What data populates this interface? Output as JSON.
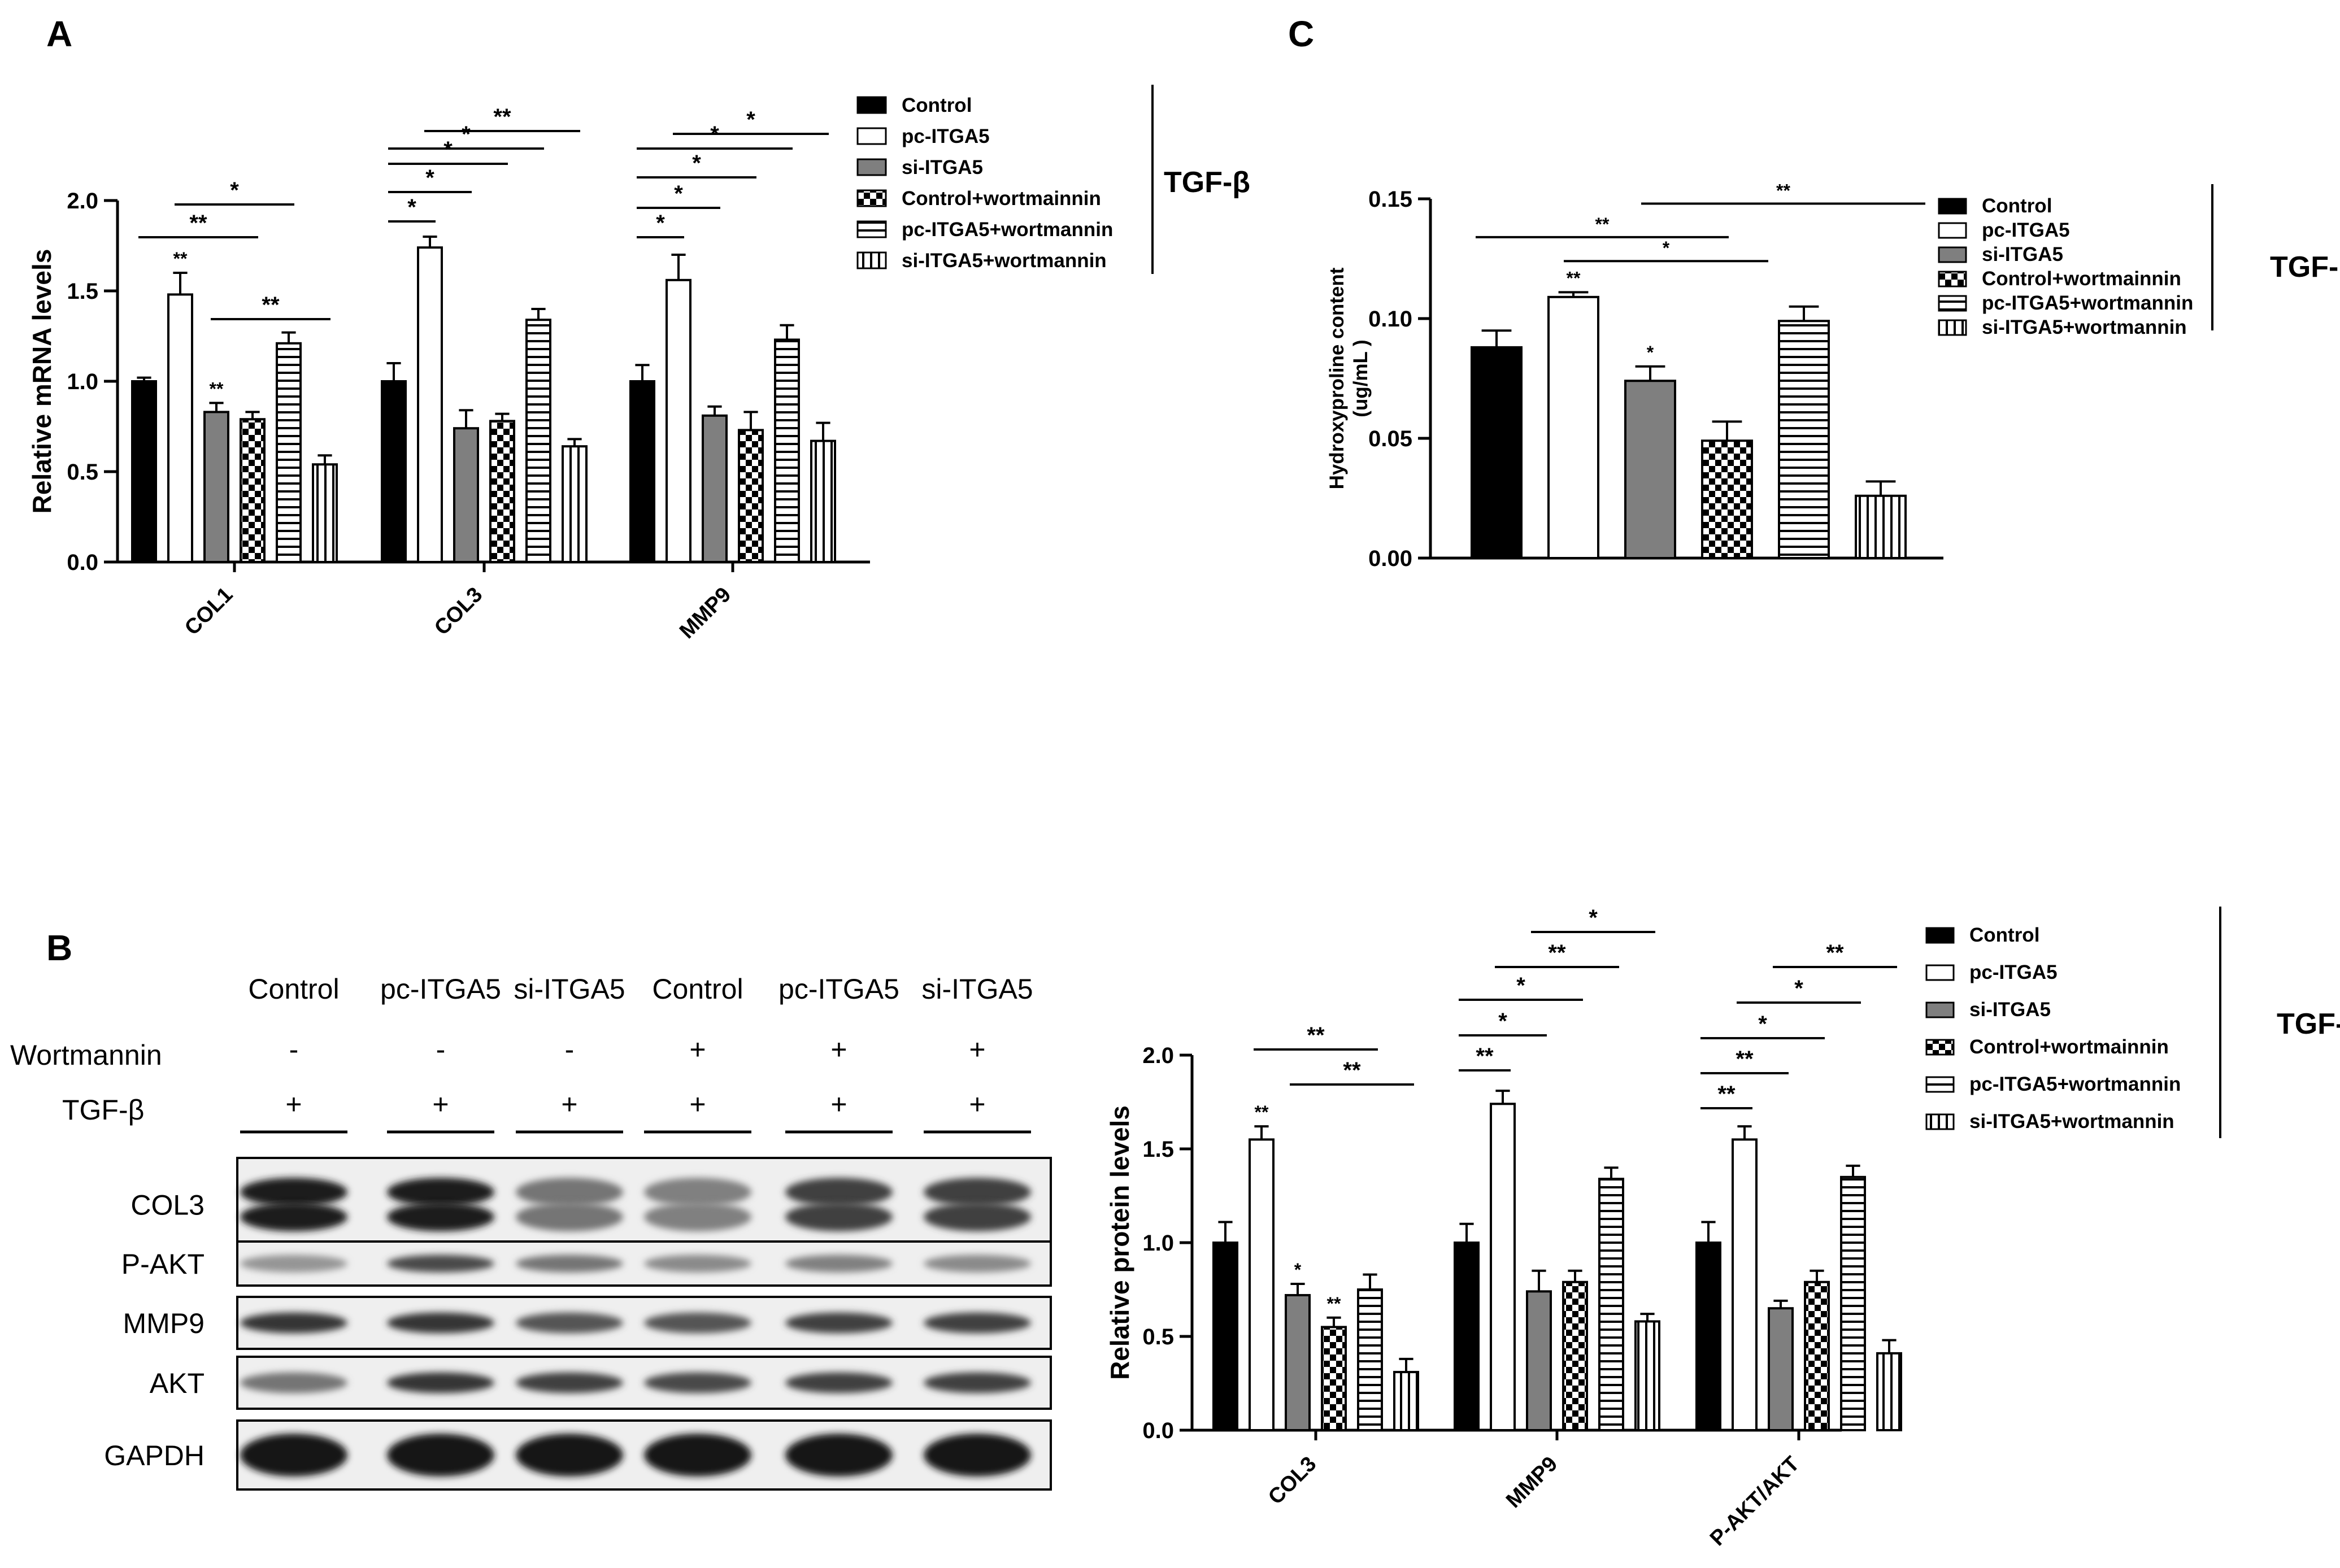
{
  "colors": {
    "control": "#000000",
    "pc_itga5": "#ffffff",
    "si_itga5": "#7f7f7f",
    "line": "#000000"
  },
  "pattern_names": [
    "solid-black",
    "white",
    "solid-gray",
    "checker",
    "horizontal-stripes",
    "vertical-stripes"
  ],
  "treatment_label": "TGF-β",
  "chart_data": [
    {
      "panel": "A",
      "type": "bar",
      "ylabel": "Relative mRNA levels",
      "ylim": [
        0,
        2.0
      ],
      "yticks": [
        "0.0",
        "0.5",
        "1.0",
        "1.5",
        "2.0"
      ],
      "categories": [
        "COL1",
        "COL3",
        "MMP9"
      ],
      "legend": [
        "Control",
        "pc-ITGA5",
        "si-ITGA5",
        "Control+wortmainnin",
        "pc-ITGA5+wortmannin",
        "si-ITGA5+wortmannin"
      ],
      "series": [
        {
          "name": "Control",
          "values": [
            1.0,
            1.0,
            1.0
          ],
          "errors": [
            0.02,
            0.1,
            0.09
          ]
        },
        {
          "name": "pc-ITGA5",
          "values": [
            1.48,
            1.74,
            1.56
          ],
          "errors": [
            0.12,
            0.06,
            0.14
          ]
        },
        {
          "name": "si-ITGA5",
          "values": [
            0.83,
            0.74,
            0.81
          ],
          "errors": [
            0.05,
            0.1,
            0.05
          ]
        },
        {
          "name": "Control+wortmainnin",
          "values": [
            0.79,
            0.78,
            0.73
          ],
          "errors": [
            0.04,
            0.04,
            0.1
          ]
        },
        {
          "name": "pc-ITGA5+wortmannin",
          "values": [
            1.21,
            1.34,
            1.23
          ],
          "errors": [
            0.06,
            0.06,
            0.08
          ]
        },
        {
          "name": "si-ITGA5+wortmannin",
          "values": [
            0.54,
            0.64,
            0.67
          ],
          "errors": [
            0.05,
            0.04,
            0.1
          ]
        }
      ],
      "bar_labels": [
        {
          "category": 0,
          "series": 1,
          "text": "**"
        },
        {
          "category": 0,
          "series": 2,
          "text": "**"
        }
      ],
      "brackets": [
        {
          "category": 0,
          "from": 0,
          "to": 1,
          "level": 0,
          "text": ""
        },
        {
          "category": 0,
          "from": 0,
          "to": 3,
          "level": 1,
          "text": "**"
        },
        {
          "category": 0,
          "from": 1,
          "to": 4,
          "level": 2,
          "text": "*"
        },
        {
          "category": 0,
          "from": 2,
          "to": 5,
          "level": 3,
          "text": "**"
        },
        {
          "category": 1,
          "from": 0,
          "to": 1,
          "level": 0,
          "text": "*"
        },
        {
          "category": 1,
          "from": 0,
          "to": 2,
          "level": 1,
          "text": "*"
        },
        {
          "category": 1,
          "from": 0,
          "to": 3,
          "level": 2,
          "text": "*"
        },
        {
          "category": 1,
          "from": 0,
          "to": 4,
          "level": 3,
          "text": "*"
        },
        {
          "category": 1,
          "from": 1,
          "to": 5,
          "level": 4,
          "text": "**"
        },
        {
          "category": 2,
          "from": 0,
          "to": 1,
          "level": 0,
          "text": "*"
        },
        {
          "category": 2,
          "from": 0,
          "to": 2,
          "level": 1,
          "text": "*"
        },
        {
          "category": 2,
          "from": 0,
          "to": 3,
          "level": 2,
          "text": "*"
        },
        {
          "category": 2,
          "from": 0,
          "to": 4,
          "level": 3,
          "text": "*"
        },
        {
          "category": 2,
          "from": 1,
          "to": 5,
          "level": 4,
          "text": "*"
        }
      ]
    },
    {
      "panel": "C",
      "type": "bar",
      "ylabel": "Hydroxyproline content",
      "ylabel2": "(ug/mL )",
      "ylim": [
        0,
        0.15
      ],
      "yticks": [
        "0.00",
        "0.05",
        "0.10",
        "0.15"
      ],
      "categories": [
        "Control",
        "pc-ITGA5",
        "si-ITGA5",
        "Control+wortmainnin",
        "pc-ITGA5+wortmannin",
        "si-ITGA5+wortmannin"
      ],
      "legend": [
        "Control",
        "pc-ITGA5",
        "si-ITGA5",
        "Control+wortmainnin",
        "pc-ITGA5+wortmannin",
        "si-ITGA5+wortmannin"
      ],
      "values": [
        0.088,
        0.109,
        0.074,
        0.049,
        0.099,
        0.026
      ],
      "errors": [
        0.007,
        0.002,
        0.006,
        0.008,
        0.006,
        0.006
      ],
      "bar_labels": [
        {
          "index": 1,
          "text": "**"
        },
        {
          "index": 2,
          "text": "*"
        }
      ],
      "brackets": [
        {
          "from": 0,
          "to": 3,
          "y": 0.134,
          "text": "**"
        },
        {
          "from": 1,
          "to": 4,
          "y": 0.124,
          "text": "*"
        },
        {
          "from": 2,
          "to": 6,
          "y": 0.148,
          "text": "**"
        }
      ]
    },
    {
      "panel": "B",
      "type": "bar",
      "ylabel": "Relative protein levels",
      "ylim": [
        0,
        2.0
      ],
      "yticks": [
        "0.0",
        "0.5",
        "1.0",
        "1.5",
        "2.0"
      ],
      "categories": [
        "COL3",
        "MMP9",
        "P-AKT/AKT"
      ],
      "legend": [
        "Control",
        "pc-ITGA5",
        "si-ITGA5",
        "Control+wortmainnin",
        "pc-ITGA5+wortmannin",
        "si-ITGA5+wortmannin"
      ],
      "series": [
        {
          "name": "Control",
          "values": [
            1.0,
            1.0,
            1.0
          ],
          "errors": [
            0.11,
            0.1,
            0.11
          ]
        },
        {
          "name": "pc-ITGA5",
          "values": [
            1.55,
            1.74,
            1.55
          ],
          "errors": [
            0.07,
            0.07,
            0.07
          ]
        },
        {
          "name": "si-ITGA5",
          "values": [
            0.72,
            0.74,
            0.65
          ],
          "errors": [
            0.06,
            0.11,
            0.04
          ]
        },
        {
          "name": "Control+wortmainnin",
          "values": [
            0.55,
            0.79,
            0.79
          ],
          "errors": [
            0.05,
            0.06,
            0.06
          ]
        },
        {
          "name": "pc-ITGA5+wortmannin",
          "values": [
            0.75,
            1.34,
            1.35
          ],
          "errors": [
            0.08,
            0.06,
            0.06
          ]
        },
        {
          "name": "si-ITGA5+wortmannin",
          "values": [
            0.31,
            0.58,
            0.41
          ],
          "errors": [
            0.07,
            0.04,
            0.07
          ]
        }
      ],
      "bar_labels": [
        {
          "category": 0,
          "series": 1,
          "text": "**"
        },
        {
          "category": 0,
          "series": 2,
          "text": "*"
        },
        {
          "category": 0,
          "series": 3,
          "text": "**"
        }
      ],
      "brackets": [
        {
          "category": 0,
          "from": 1,
          "to": 4,
          "level": 0,
          "text": "**"
        },
        {
          "category": 0,
          "from": 2,
          "to": 5,
          "level": 1,
          "text": "**"
        },
        {
          "category": 1,
          "from": 0,
          "to": 1,
          "level": 0,
          "text": "**"
        },
        {
          "category": 1,
          "from": 0,
          "to": 2,
          "level": 1,
          "text": "*"
        },
        {
          "category": 1,
          "from": 0,
          "to": 3,
          "level": 2,
          "text": "*"
        },
        {
          "category": 1,
          "from": 1,
          "to": 4,
          "level": 3,
          "text": "**"
        },
        {
          "category": 1,
          "from": 2,
          "to": 5,
          "level": 4,
          "text": "*"
        },
        {
          "category": 2,
          "from": 0,
          "to": 1,
          "level": 0,
          "text": "**"
        },
        {
          "category": 2,
          "from": 0,
          "to": 2,
          "level": 1,
          "text": "**"
        },
        {
          "category": 2,
          "from": 0,
          "to": 3,
          "level": 2,
          "text": "*"
        },
        {
          "category": 2,
          "from": 1,
          "to": 4,
          "level": 3,
          "text": "*"
        },
        {
          "category": 2,
          "from": 2,
          "to": 5,
          "level": 4,
          "text": "**"
        }
      ]
    }
  ],
  "western_blot": {
    "panel": "B",
    "columns": [
      "Control",
      "pc-ITGA5",
      "si-ITGA5",
      "Control",
      "pc-ITGA5",
      "si-ITGA5"
    ],
    "conditions": [
      {
        "label": "Wortmannin",
        "signs": [
          "-",
          "-",
          "-",
          "+",
          "+",
          "+"
        ]
      },
      {
        "label": "TGF-β",
        "signs": [
          "+",
          "+",
          "+",
          "+",
          "+",
          "+"
        ]
      }
    ],
    "bands": [
      {
        "label": "COL3",
        "intensities": [
          0.95,
          0.95,
          0.55,
          0.5,
          0.8,
          0.8
        ],
        "double": true
      },
      {
        "label": "P-AKT",
        "intensities": [
          0.4,
          0.75,
          0.55,
          0.45,
          0.5,
          0.45
        ],
        "double": false
      },
      {
        "label": "MMP9",
        "intensities": [
          0.85,
          0.85,
          0.7,
          0.7,
          0.8,
          0.8
        ],
        "double": false
      },
      {
        "label": "AKT",
        "intensities": [
          0.55,
          0.85,
          0.8,
          0.75,
          0.8,
          0.8
        ],
        "double": false
      },
      {
        "label": "GAPDH",
        "intensities": [
          0.98,
          0.98,
          0.98,
          0.98,
          0.98,
          0.98
        ],
        "double": false
      }
    ]
  }
}
